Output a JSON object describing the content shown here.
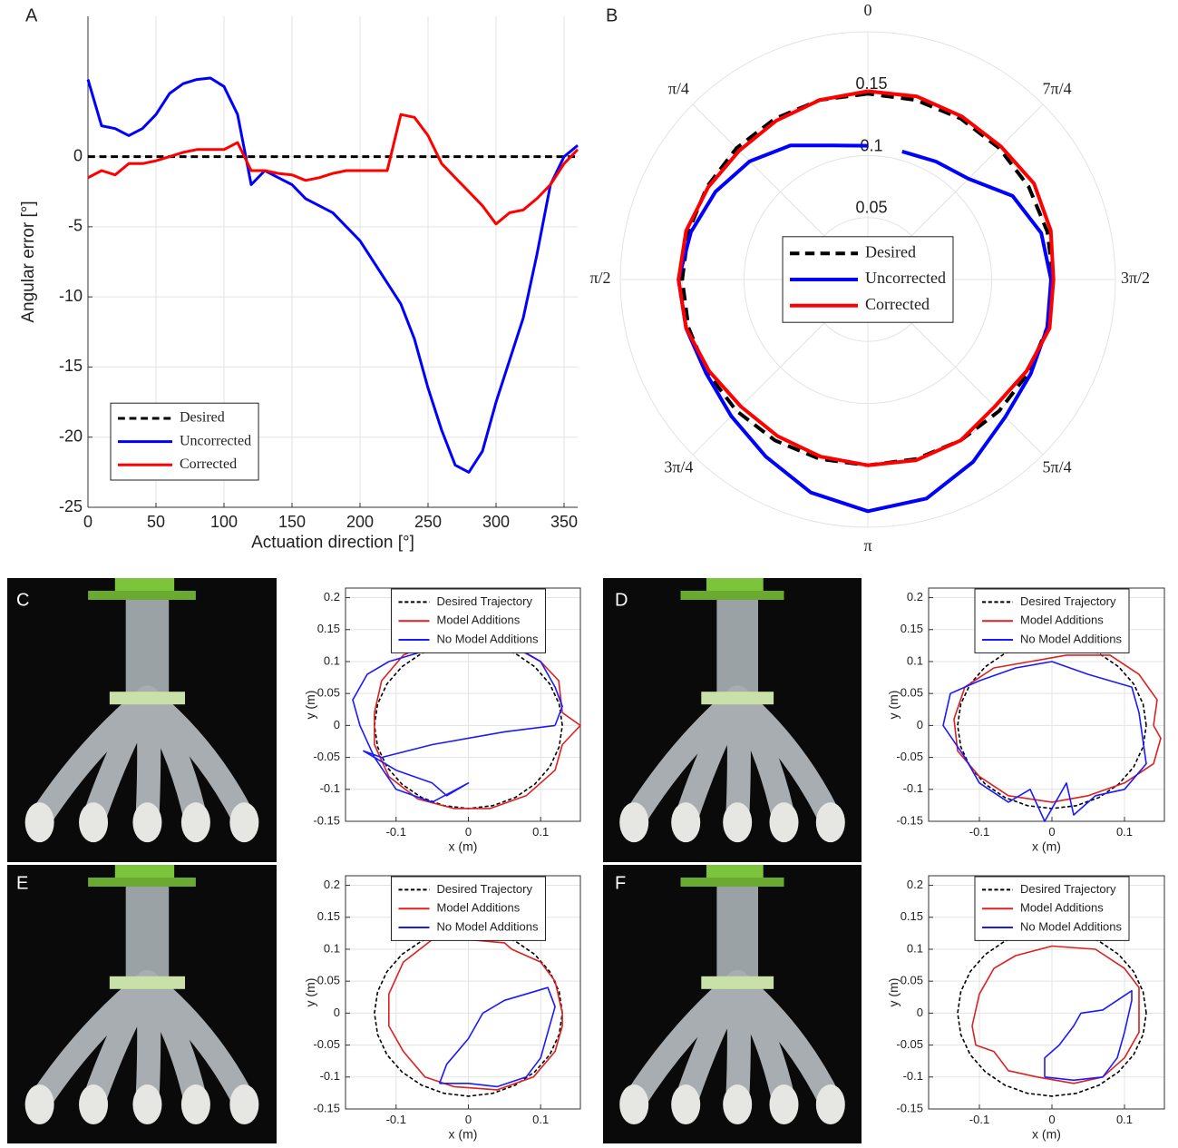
{
  "chart_data": [
    {
      "type": "line",
      "panel": "A",
      "xlabel": "Actuation direction [°]",
      "ylabel": "Angular error [°]",
      "xlim": [
        0,
        360
      ],
      "xticks": [
        0,
        50,
        100,
        150,
        200,
        250,
        300,
        350
      ],
      "ylim": [
        -25,
        10
      ],
      "yticks": [
        -25,
        -20,
        -15,
        -10,
        -5,
        0
      ],
      "grid": true,
      "box": false,
      "legend": "lower left",
      "x": [
        0,
        10,
        20,
        30,
        40,
        50,
        60,
        70,
        80,
        90,
        100,
        110,
        120,
        130,
        140,
        150,
        160,
        170,
        180,
        190,
        200,
        210,
        220,
        230,
        240,
        250,
        260,
        270,
        280,
        290,
        300,
        310,
        320,
        330,
        340,
        350,
        360
      ],
      "series": [
        {
          "name": "Desired",
          "color": "#000000",
          "style": "dashed",
          "values": [
            0,
            0,
            0,
            0,
            0,
            0,
            0,
            0,
            0,
            0,
            0,
            0,
            0,
            0,
            0,
            0,
            0,
            0,
            0,
            0,
            0,
            0,
            0,
            0,
            0,
            0,
            0,
            0,
            0,
            0,
            0,
            0,
            0,
            0,
            0,
            0,
            0
          ]
        },
        {
          "name": "Uncorrected",
          "color": "#0000ff",
          "style": "solid",
          "values": [
            5.5,
            2.2,
            2,
            1.5,
            2,
            3,
            4.5,
            5.2,
            5.5,
            5.6,
            5,
            3,
            -2,
            -1,
            -1.5,
            -2,
            -3,
            -3.5,
            -4,
            -5,
            -6,
            -7.5,
            -9,
            -10.5,
            -13,
            -16.5,
            -19.5,
            -22,
            -22.5,
            -21,
            -17.5,
            -14.5,
            -11.5,
            -7,
            -2,
            0,
            0.8
          ]
        },
        {
          "name": "Corrected",
          "color": "#ff0000",
          "style": "solid",
          "values": [
            -1.5,
            -1,
            -1.3,
            -0.5,
            -0.5,
            -0.3,
            0,
            0.3,
            0.5,
            0.5,
            0.5,
            1,
            -1,
            -1,
            -1.2,
            -1.3,
            -1.7,
            -1.5,
            -1.2,
            -1,
            -1,
            -1,
            -1,
            3,
            2.8,
            1.5,
            -0.5,
            -1.5,
            -2.5,
            -3.5,
            -4.8,
            -4,
            -3.8,
            -3,
            -2,
            -0.5,
            0.5
          ]
        }
      ]
    },
    {
      "type": "polar",
      "panel": "B",
      "rlim": [
        0,
        0.2
      ],
      "rticks": [
        0.05,
        0.1,
        0.15
      ],
      "grid": true,
      "legend": "center",
      "thetaticks": [
        0,
        {
          "value": 0.7854,
          "label": "π/4"
        },
        {
          "value": 1.5708,
          "label": "π/2"
        },
        {
          "value": 2.3562,
          "label": "3π/4"
        },
        {
          "value": 3.1416,
          "label": "π"
        },
        {
          "value": 3.927,
          "label": "5π/4"
        },
        {
          "value": 4.7124,
          "label": "3π/2"
        },
        {
          "value": 5.4978,
          "label": "7π/4"
        }
      ],
      "theta": [
        0,
        0.2618,
        0.5236,
        0.7854,
        1.0472,
        1.309,
        1.5708,
        1.8326,
        2.0944,
        2.3562,
        2.618,
        2.8798,
        3.1416,
        3.4034,
        3.6652,
        3.927,
        4.1888,
        4.4506,
        4.7124,
        4.9742,
        5.236,
        5.4978,
        5.7596,
        6.0214,
        6.2832
      ],
      "series": [
        {
          "name": "Desired",
          "color": "#000000",
          "style": "dashed",
          "values": [
            0.15,
            0.15,
            0.15,
            0.15,
            0.15,
            0.15,
            0.15,
            0.15,
            0.15,
            0.15,
            0.15,
            0.15,
            0.15,
            0.15,
            0.15,
            0.15,
            0.15,
            0.15,
            0.15,
            0.15,
            0.15,
            0.15,
            0.15,
            0.15,
            0.15
          ]
        },
        {
          "name": "Uncorrected",
          "color": "#0000ff",
          "style": "solid",
          "values": [
            0.108,
            0.112,
            0.125,
            0.135,
            0.142,
            0.148,
            0.153,
            0.152,
            0.151,
            0.156,
            0.165,
            0.178,
            0.187,
            0.183,
            0.17,
            0.157,
            0.152,
            0.15,
            0.148,
            0.145,
            0.135,
            0.115,
            0.11,
            0.107,
            null
          ]
        },
        {
          "name": "Corrected",
          "color": "#ff0000",
          "style": "solid",
          "values": [
            0.152,
            0.15,
            0.148,
            0.147,
            0.149,
            0.152,
            0.153,
            0.152,
            0.148,
            0.145,
            0.146,
            0.148,
            0.15,
            0.151,
            0.15,
            0.145,
            0.148,
            0.152,
            0.15,
            0.153,
            0.155,
            0.152,
            0.152,
            0.153,
            0.152
          ]
        }
      ]
    },
    {
      "type": "line",
      "panel": "C",
      "xlabel": "x (m)",
      "ylabel": "y (m)",
      "xlim": [
        -0.17,
        0.155
      ],
      "xticks": [
        -0.1,
        0,
        0.1
      ],
      "ylim": [
        -0.15,
        0.215
      ],
      "yticks": [
        -0.15,
        -0.1,
        -0.05,
        0,
        0.05,
        0.1,
        0.15,
        0.2
      ],
      "grid": true,
      "box": true,
      "legend": "upper center",
      "series": [
        {
          "name": "Desired Trajectory",
          "color": "#000000",
          "style": "dashed",
          "x": [
            0.13,
            0.1256,
            0.1126,
            0.0919,
            0.065,
            0.0336,
            0,
            -0.0336,
            -0.065,
            -0.0919,
            -0.1126,
            -0.1256,
            -0.13,
            -0.1256,
            -0.1126,
            -0.0919,
            -0.065,
            -0.0336,
            0,
            0.0336,
            0.065,
            0.0919,
            0.1126,
            0.1256,
            0.13
          ],
          "y": [
            0,
            0.0336,
            0.065,
            0.0919,
            0.1126,
            0.1256,
            0.13,
            0.1256,
            0.1126,
            0.0919,
            0.065,
            0.0336,
            0,
            -0.0336,
            -0.065,
            -0.0919,
            -0.1126,
            -0.1256,
            -0.13,
            -0.1256,
            -0.1126,
            -0.0919,
            -0.065,
            -0.0336,
            0
          ]
        },
        {
          "name": "Model Additions",
          "color": "#dd2020",
          "style": "solid",
          "x": [
            0.13,
            0.125,
            0.1,
            0.06,
            0,
            -0.05,
            -0.09,
            -0.12,
            -0.13,
            -0.13,
            -0.11,
            -0.07,
            -0.02,
            0.03,
            0.08,
            0.12,
            0.13,
            0.155,
            0.13
          ],
          "y": [
            0.02,
            0.07,
            0.1,
            0.125,
            0.13,
            0.13,
            0.11,
            0.07,
            0.02,
            -0.03,
            -0.08,
            -0.115,
            -0.13,
            -0.13,
            -0.11,
            -0.07,
            -0.03,
            0,
            0.02
          ]
        },
        {
          "name": "No Model Additions",
          "color": "#1a1aff",
          "style": "solid",
          "x": [
            0.12,
            0.05,
            -0.05,
            -0.12,
            -0.145,
            -0.1,
            -0.05,
            -0.03,
            0,
            -0.05,
            -0.1,
            -0.13,
            -0.15,
            -0.16,
            -0.14,
            -0.11,
            -0.05,
            0.02,
            0.07,
            0.1,
            0.12,
            0.13,
            0.12
          ],
          "y": [
            0,
            -0.01,
            -0.03,
            -0.05,
            -0.04,
            -0.07,
            -0.09,
            -0.11,
            -0.09,
            -0.12,
            -0.1,
            -0.05,
            0,
            0.04,
            0.08,
            0.1,
            0.12,
            0.13,
            0.12,
            0.1,
            0.06,
            0.03,
            0
          ]
        }
      ]
    },
    {
      "type": "line",
      "panel": "D",
      "xlabel": "x (m)",
      "ylabel": "y (m)",
      "xlim": [
        -0.17,
        0.155
      ],
      "xticks": [
        -0.1,
        0,
        0.1
      ],
      "ylim": [
        -0.15,
        0.215
      ],
      "yticks": [
        -0.15,
        -0.1,
        -0.05,
        0,
        0.05,
        0.1,
        0.15,
        0.2
      ],
      "grid": true,
      "box": true,
      "legend": "upper center",
      "series": [
        {
          "name": "Desired Trajectory",
          "color": "#000000",
          "style": "dashed",
          "x": [
            0.13,
            0.1256,
            0.1126,
            0.0919,
            0.065,
            0.0336,
            0,
            -0.0336,
            -0.065,
            -0.0919,
            -0.1126,
            -0.1256,
            -0.13,
            -0.1256,
            -0.1126,
            -0.0919,
            -0.065,
            -0.0336,
            0,
            0.0336,
            0.065,
            0.0919,
            0.1126,
            0.1256,
            0.13
          ],
          "y": [
            0,
            0.0336,
            0.065,
            0.0919,
            0.1126,
            0.1256,
            0.13,
            0.1256,
            0.1126,
            0.0919,
            0.065,
            0.0336,
            0,
            -0.0336,
            -0.065,
            -0.0919,
            -0.1126,
            -0.1256,
            -0.13,
            -0.1256,
            -0.1126,
            -0.0919,
            -0.065,
            -0.0336,
            0
          ]
        },
        {
          "name": "Model Additions",
          "color": "#dd2020",
          "style": "solid",
          "x": [
            0.14,
            0.145,
            0.12,
            0.08,
            0.02,
            -0.03,
            -0.08,
            -0.12,
            -0.135,
            -0.13,
            -0.1,
            -0.06,
            0,
            0.05,
            0.1,
            0.14,
            0.15,
            0.14
          ],
          "y": [
            0,
            0.04,
            0.08,
            0.11,
            0.11,
            0.1,
            0.09,
            0.06,
            0.01,
            -0.04,
            -0.08,
            -0.11,
            -0.12,
            -0.11,
            -0.09,
            -0.06,
            -0.02,
            0
          ]
        },
        {
          "name": "No Model Additions",
          "color": "#1a1aff",
          "style": "solid",
          "x": [
            0.12,
            0.11,
            0.08,
            0.05,
            0,
            -0.05,
            -0.1,
            -0.14,
            -0.15,
            -0.12,
            -0.1,
            -0.06,
            -0.03,
            -0.01,
            0.02,
            0.03,
            0.06,
            0.1,
            0.13,
            0.12
          ],
          "y": [
            0.02,
            0.06,
            0.07,
            0.08,
            0.1,
            0.09,
            0.07,
            0.05,
            0,
            -0.05,
            -0.09,
            -0.12,
            -0.1,
            -0.15,
            -0.09,
            -0.14,
            -0.11,
            -0.1,
            -0.06,
            0.02
          ]
        }
      ]
    },
    {
      "type": "line",
      "panel": "E",
      "xlabel": "x (m)",
      "ylabel": "y (m)",
      "xlim": [
        -0.17,
        0.155
      ],
      "xticks": [
        -0.1,
        0,
        0.1
      ],
      "ylim": [
        -0.15,
        0.215
      ],
      "yticks": [
        -0.15,
        -0.1,
        -0.05,
        0,
        0.05,
        0.1,
        0.15,
        0.2
      ],
      "grid": true,
      "box": true,
      "legend": "upper center",
      "series": [
        {
          "name": "Desired Trajectory",
          "color": "#000000",
          "style": "dashed",
          "x": [
            0.13,
            0.1256,
            0.1126,
            0.0919,
            0.065,
            0.0336,
            0,
            -0.0336,
            -0.065,
            -0.0919,
            -0.1126,
            -0.1256,
            -0.13,
            -0.1256,
            -0.1126,
            -0.0919,
            -0.065,
            -0.0336,
            0,
            0.0336,
            0.065,
            0.0919,
            0.1126,
            0.1256,
            0.13
          ],
          "y": [
            0,
            0.0336,
            0.065,
            0.0919,
            0.1126,
            0.1256,
            0.13,
            0.1256,
            0.1126,
            0.0919,
            0.065,
            0.0336,
            0,
            -0.0336,
            -0.065,
            -0.0919,
            -0.1126,
            -0.1256,
            -0.13,
            -0.1256,
            -0.1126,
            -0.0919,
            -0.065,
            -0.0336,
            0
          ]
        },
        {
          "name": "Model Additions",
          "color": "#dd2020",
          "style": "solid",
          "x": [
            0.13,
            0.12,
            0.1,
            0.06,
            0.05,
            0,
            -0.05,
            -0.09,
            -0.11,
            -0.11,
            -0.09,
            -0.06,
            -0.02,
            0.04,
            0.09,
            0.12,
            0.13,
            0.13
          ],
          "y": [
            0,
            0.05,
            0.08,
            0.1,
            0.11,
            0.115,
            0.115,
            0.08,
            0.03,
            -0.02,
            -0.06,
            -0.1,
            -0.115,
            -0.12,
            -0.1,
            -0.06,
            -0.02,
            0
          ]
        },
        {
          "name": "No Model Additions",
          "color": "#1a1aff",
          "style": "solid",
          "x": [
            -0.04,
            -0.03,
            0,
            0.02,
            0.05,
            0.08,
            0.11,
            0.12,
            0.11,
            0.1,
            0.08,
            0.04,
            0,
            -0.04
          ],
          "y": [
            -0.11,
            -0.08,
            -0.04,
            0,
            0.02,
            0.03,
            0.04,
            0.01,
            -0.03,
            -0.07,
            -0.1,
            -0.115,
            -0.11,
            -0.11
          ]
        }
      ]
    },
    {
      "type": "line",
      "panel": "F",
      "xlabel": "x (m)",
      "ylabel": "y (m)",
      "xlim": [
        -0.17,
        0.155
      ],
      "xticks": [
        -0.1,
        0,
        0.1
      ],
      "ylim": [
        -0.15,
        0.215
      ],
      "yticks": [
        -0.15,
        -0.1,
        -0.05,
        0,
        0.05,
        0.1,
        0.15,
        0.2
      ],
      "grid": true,
      "box": true,
      "legend": "upper center",
      "series": [
        {
          "name": "Desired Trajectory",
          "color": "#000000",
          "style": "dashed",
          "x": [
            0.13,
            0.1256,
            0.1126,
            0.0919,
            0.065,
            0.0336,
            0,
            -0.0336,
            -0.065,
            -0.0919,
            -0.1126,
            -0.1256,
            -0.13,
            -0.1256,
            -0.1126,
            -0.0919,
            -0.065,
            -0.0336,
            0,
            0.0336,
            0.065,
            0.0919,
            0.1126,
            0.1256,
            0.13
          ],
          "y": [
            0,
            0.0336,
            0.065,
            0.0919,
            0.1126,
            0.1256,
            0.13,
            0.1256,
            0.1126,
            0.0919,
            0.065,
            0.0336,
            0,
            -0.0336,
            -0.065,
            -0.0919,
            -0.1126,
            -0.1256,
            -0.13,
            -0.1256,
            -0.1126,
            -0.0919,
            -0.065,
            -0.0336,
            0
          ]
        },
        {
          "name": "Model Additions",
          "color": "#dd2020",
          "style": "solid",
          "x": [
            0.12,
            0.12,
            0.1,
            0.06,
            0,
            -0.05,
            -0.08,
            -0.1,
            -0.11,
            -0.105,
            -0.08,
            -0.06,
            -0.02,
            0.03,
            0.07,
            0.1,
            0.12,
            0.12
          ],
          "y": [
            0,
            0.04,
            0.07,
            0.1,
            0.105,
            0.09,
            0.07,
            0.03,
            -0.02,
            -0.05,
            -0.06,
            -0.09,
            -0.1,
            -0.11,
            -0.1,
            -0.07,
            -0.03,
            0
          ]
        },
        {
          "name": "No Model Additions",
          "color": "#1a1aff",
          "style": "solid",
          "x": [
            -0.01,
            -0.01,
            0.01,
            0.03,
            0.04,
            0.07,
            0.09,
            0.11,
            0.11,
            0.1,
            0.09,
            0.07,
            0.03,
            -0.01
          ],
          "y": [
            -0.1,
            -0.07,
            -0.05,
            -0.02,
            0,
            0.005,
            0.02,
            0.035,
            0.02,
            -0.03,
            -0.07,
            -0.1,
            -0.105,
            -0.1
          ]
        }
      ]
    }
  ]
}
